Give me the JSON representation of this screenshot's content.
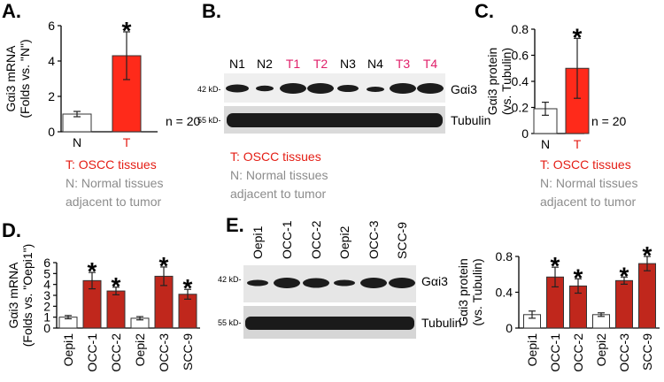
{
  "colors": {
    "tumor_red": "#ff2a1a",
    "cancer_dark_red": "#c0271c",
    "normal_white": "#ffffff",
    "caption_red": "#e41d14",
    "caption_gray": "#8c8c8c",
    "lane_pink": "#e0206a"
  },
  "panel_labels": {
    "a": "A.",
    "b": "B.",
    "c": "C.",
    "d": "D.",
    "e": "E."
  },
  "captions": {
    "t_oscc": "T: OSCC tissues",
    "n_line1": "N: Normal tissues",
    "n_line2": "adjacent to tumor",
    "n20": "n = 20"
  },
  "blot_b": {
    "lanes": [
      {
        "label": "N1",
        "type": "normal"
      },
      {
        "label": "N2",
        "type": "normal"
      },
      {
        "label": "T1",
        "type": "tumor"
      },
      {
        "label": "T2",
        "type": "tumor"
      },
      {
        "label": "N3",
        "type": "normal"
      },
      {
        "label": "N4",
        "type": "normal"
      },
      {
        "label": "T3",
        "type": "tumor"
      },
      {
        "label": "T4",
        "type": "tumor"
      }
    ],
    "marker_top": "42 kD-",
    "marker_bottom": "55 kD-",
    "protein_top": "Gαi3",
    "protein_bottom": "Tubulin"
  },
  "blot_e": {
    "lanes": [
      "Oepi1",
      "OCC-1",
      "OCC-2",
      "Oepi2",
      "OCC-3",
      "SCC-9"
    ],
    "marker_top": "42 kD-",
    "marker_bottom": "55 kD-",
    "protein_top": "Gαi3",
    "protein_bottom": "Tubulin"
  },
  "chart_data": [
    {
      "panel": "A",
      "type": "bar",
      "ylabel": "Gαi3 mRNA",
      "ylabel2": "(Folds vs. \"N\")",
      "ylim": [
        0,
        6
      ],
      "yticks": [
        0,
        2,
        4,
        6
      ],
      "categories": [
        "N",
        "T"
      ],
      "values": [
        1.0,
        4.3
      ],
      "errors": [
        0.15,
        1.35
      ],
      "significant": [
        false,
        true
      ],
      "bar_colors": [
        "#ffffff",
        "#ff2a1a"
      ],
      "star": "*"
    },
    {
      "panel": "C",
      "type": "bar",
      "ylabel": "Gαi3 protein",
      "ylabel2": "(vs. Tubulin)",
      "ylim": [
        0,
        0.8
      ],
      "yticks": [
        "0",
        "0.2",
        "0.4",
        "0.6",
        "0.8"
      ],
      "categories": [
        "N",
        "T"
      ],
      "values": [
        0.19,
        0.5
      ],
      "errors": [
        0.05,
        0.23
      ],
      "significant": [
        false,
        true
      ],
      "bar_colors": [
        "#ffffff",
        "#ff2a1a"
      ],
      "star": "*"
    },
    {
      "panel": "D",
      "type": "bar",
      "ylabel": "Gαi3 mRNA",
      "ylabel2": "(Folds vs. \"Oepi1\")",
      "ylim": [
        0,
        6
      ],
      "yticks": [
        0,
        1,
        2,
        3,
        4,
        5,
        6
      ],
      "categories": [
        "Oepi1",
        "OCC-1",
        "OCC-2",
        "Oepi2",
        "OCC-3",
        "SCC-9"
      ],
      "values": [
        1.0,
        4.35,
        3.4,
        0.9,
        4.75,
        3.1
      ],
      "errors": [
        0.15,
        0.75,
        0.35,
        0.15,
        0.85,
        0.45
      ],
      "significant": [
        false,
        true,
        true,
        false,
        true,
        true
      ],
      "bar_colors": [
        "#ffffff",
        "#c0271c",
        "#c0271c",
        "#ffffff",
        "#c0271c",
        "#c0271c"
      ],
      "star": "*"
    },
    {
      "panel": "E",
      "type": "bar",
      "ylabel": "Gαi3 protein",
      "ylabel2": "(vs. Tubulin)",
      "ylim": [
        0,
        0.8
      ],
      "yticks": [
        "0",
        "0.4",
        "0.8"
      ],
      "categories": [
        "Oepi1",
        "OCC-1",
        "OCC-2",
        "Oepi2",
        "OCC-3",
        "SCC-9"
      ],
      "values": [
        0.15,
        0.57,
        0.47,
        0.15,
        0.53,
        0.72
      ],
      "errors": [
        0.04,
        0.11,
        0.08,
        0.02,
        0.04,
        0.08
      ],
      "significant": [
        false,
        true,
        true,
        false,
        true,
        true
      ],
      "bar_colors": [
        "#ffffff",
        "#c0271c",
        "#c0271c",
        "#ffffff",
        "#c0271c",
        "#c0271c"
      ],
      "star": "*"
    }
  ]
}
